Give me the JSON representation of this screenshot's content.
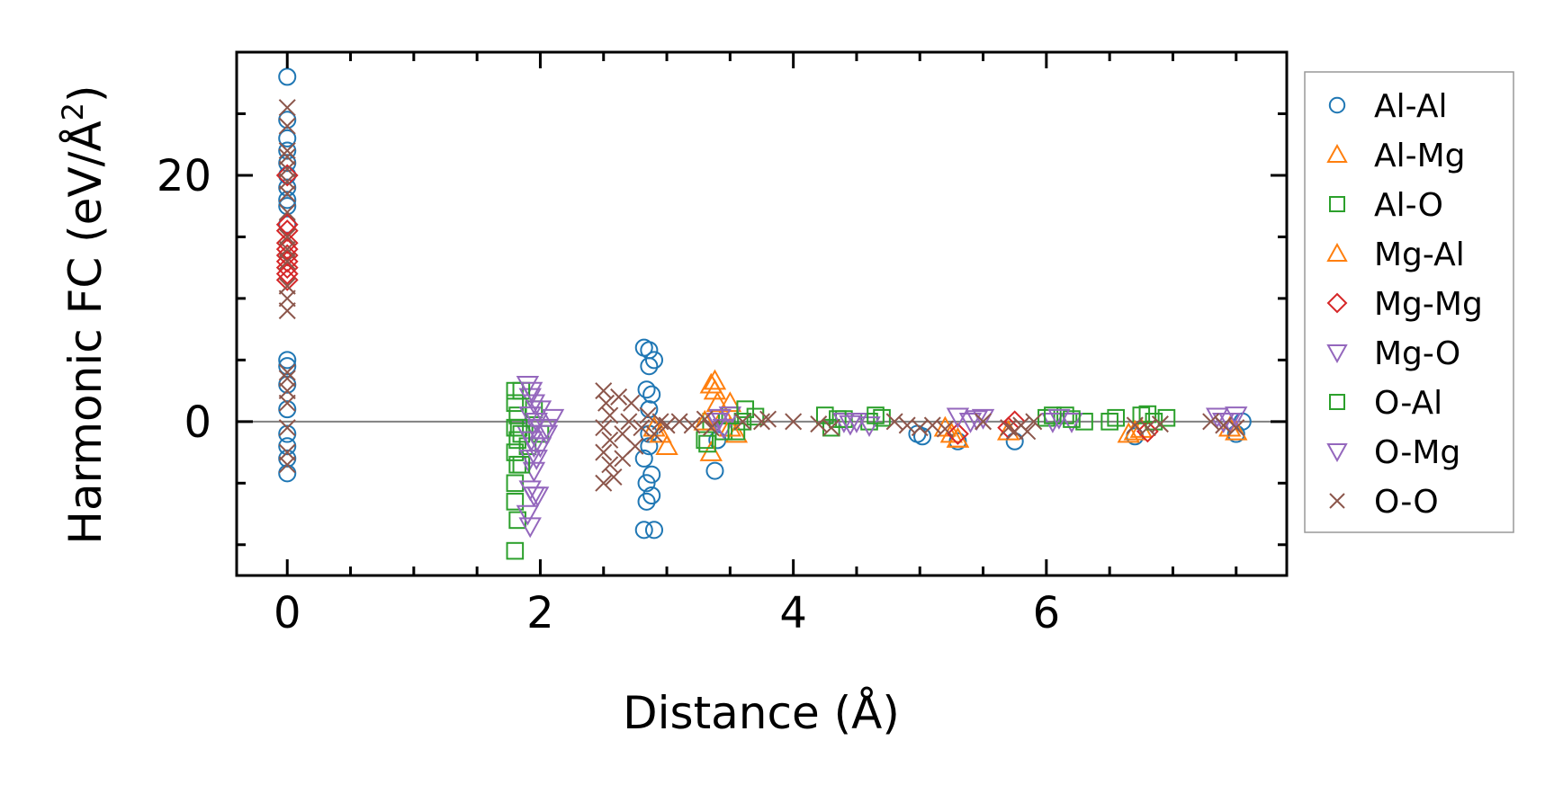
{
  "chart_data": {
    "type": "scatter",
    "xlabel": "Distance (Å)",
    "ylabel_main": "Harmonic FC (eV/Å",
    "ylabel_sup": "2",
    "ylabel_close": ")",
    "xlim": [
      -0.4,
      7.9
    ],
    "ylim": [
      -12.5,
      30
    ],
    "x_ticks": [
      0,
      2,
      4,
      6
    ],
    "x_tick_labels": [
      "0",
      "2",
      "4",
      "6"
    ],
    "y_ticks": [
      0,
      20
    ],
    "y_tick_labels": [
      "0",
      "20"
    ],
    "zero_line": true,
    "grid": false,
    "legend_position": "outside-right",
    "series": [
      {
        "name": "Al-Al",
        "marker": "circle",
        "color": "#1f77b4",
        "points": [
          [
            0,
            28
          ],
          [
            0,
            24.5
          ],
          [
            0,
            23
          ],
          [
            0,
            22
          ],
          [
            0,
            21
          ],
          [
            0,
            20
          ],
          [
            0,
            19
          ],
          [
            0,
            18
          ],
          [
            0,
            17.5
          ],
          [
            0,
            16
          ],
          [
            0,
            5
          ],
          [
            0,
            4.5
          ],
          [
            0,
            3
          ],
          [
            0,
            1
          ],
          [
            0,
            -1
          ],
          [
            0,
            -2
          ],
          [
            0,
            -3
          ],
          [
            0,
            -4.2
          ],
          [
            2.82,
            6
          ],
          [
            2.86,
            5.8
          ],
          [
            2.9,
            5
          ],
          [
            2.86,
            4.5
          ],
          [
            2.84,
            2.6
          ],
          [
            2.88,
            2.2
          ],
          [
            2.86,
            1
          ],
          [
            2.86,
            -1
          ],
          [
            2.86,
            -2
          ],
          [
            2.82,
            -3
          ],
          [
            2.88,
            -4.3
          ],
          [
            2.84,
            -5
          ],
          [
            2.88,
            -6
          ],
          [
            2.84,
            -6.5
          ],
          [
            2.82,
            -8.8
          ],
          [
            2.9,
            -8.8
          ],
          [
            3.38,
            -4
          ],
          [
            3.4,
            -1.5
          ],
          [
            4.98,
            -1
          ],
          [
            5.02,
            -1.2
          ],
          [
            5.3,
            -1.6
          ],
          [
            5.75,
            -1.6
          ],
          [
            6.7,
            -1.2
          ],
          [
            7.5,
            -1
          ],
          [
            7.55,
            0
          ]
        ]
      },
      {
        "name": "Al-Mg",
        "marker": "triangle-up",
        "color": "#ff7f0e",
        "points": [
          [
            2.95,
            -1
          ],
          [
            3.0,
            -2
          ],
          [
            3.35,
            3
          ],
          [
            3.38,
            2.5
          ],
          [
            3.4,
            1.5
          ],
          [
            3.35,
            -2.5
          ],
          [
            3.45,
            0.5
          ],
          [
            3.5,
            1.5
          ],
          [
            3.55,
            -1
          ],
          [
            5.25,
            -1
          ],
          [
            5.3,
            -1.4
          ],
          [
            5.7,
            -0.8
          ],
          [
            6.65,
            -1
          ],
          [
            6.75,
            -0.6
          ],
          [
            7.5,
            -0.8
          ]
        ]
      },
      {
        "name": "Al-O",
        "marker": "square",
        "color": "#2ca02c",
        "points": [
          [
            1.8,
            2.5
          ],
          [
            1.8,
            1.5
          ],
          [
            1.82,
            0.5
          ],
          [
            1.8,
            -0.5
          ],
          [
            1.82,
            -1.5
          ],
          [
            1.8,
            -2.5
          ],
          [
            1.82,
            -3.5
          ],
          [
            1.8,
            -5
          ],
          [
            1.8,
            -6.5
          ],
          [
            1.82,
            -8
          ],
          [
            1.8,
            -10.5
          ],
          [
            1.9,
            -2
          ],
          [
            1.95,
            1
          ],
          [
            2.0,
            -1
          ],
          [
            3.3,
            -1.5
          ],
          [
            3.35,
            0
          ],
          [
            3.45,
            -0.8
          ],
          [
            3.5,
            0.5
          ],
          [
            3.6,
            0
          ],
          [
            3.7,
            0.4
          ],
          [
            4.25,
            0.5
          ],
          [
            4.3,
            -0.5
          ],
          [
            4.4,
            0.2
          ],
          [
            4.6,
            0
          ],
          [
            4.7,
            0.3
          ],
          [
            6.0,
            0.3
          ],
          [
            6.15,
            0.5
          ],
          [
            6.3,
            0
          ],
          [
            6.5,
            0
          ],
          [
            6.75,
            0.5
          ],
          [
            6.85,
            0
          ],
          [
            6.95,
            0.3
          ]
        ]
      },
      {
        "name": "Mg-Al",
        "marker": "triangle-up",
        "color": "#ff7f0e",
        "points": [
          [
            2.9,
            -0.5
          ],
          [
            3.3,
            0
          ],
          [
            3.38,
            3.3
          ],
          [
            3.5,
            -0.5
          ],
          [
            5.2,
            -0.5
          ],
          [
            5.3,
            -1.4
          ],
          [
            6.7,
            -0.8
          ],
          [
            7.45,
            -0.5
          ]
        ]
      },
      {
        "name": "Mg-Mg",
        "marker": "diamond",
        "color": "#d62728",
        "points": [
          [
            0,
            20
          ],
          [
            0,
            16
          ],
          [
            0,
            15.5
          ],
          [
            0,
            14.5
          ],
          [
            0,
            14
          ],
          [
            0,
            13.5
          ],
          [
            0,
            13
          ],
          [
            0,
            12.5
          ],
          [
            0,
            12
          ],
          [
            0,
            11.5
          ],
          [
            5.3,
            -1
          ],
          [
            5.7,
            -0.5
          ],
          [
            5.75,
            0
          ],
          [
            6.8,
            -0.8
          ]
        ]
      },
      {
        "name": "Mg-O",
        "marker": "triangle-down",
        "color": "#9467bd",
        "points": [
          [
            1.9,
            3
          ],
          [
            1.92,
            2
          ],
          [
            1.95,
            1.5
          ],
          [
            1.92,
            0.5
          ],
          [
            1.95,
            -0.5
          ],
          [
            1.9,
            -1
          ],
          [
            1.95,
            -2
          ],
          [
            1.92,
            -3
          ],
          [
            1.95,
            -4
          ],
          [
            1.92,
            -5.5
          ],
          [
            1.95,
            -6
          ],
          [
            1.9,
            -7.5
          ],
          [
            1.92,
            -8.5
          ],
          [
            2.0,
            1
          ],
          [
            2.05,
            -0.5
          ],
          [
            2.0,
            -2
          ],
          [
            2.1,
            0.3
          ],
          [
            2.05,
            -1
          ],
          [
            3.4,
            0
          ],
          [
            3.5,
            0.5
          ],
          [
            3.45,
            -0.5
          ],
          [
            4.4,
            0
          ],
          [
            4.5,
            0
          ],
          [
            4.6,
            -0.3
          ],
          [
            5.3,
            0.4
          ],
          [
            5.4,
            0
          ],
          [
            5.5,
            0.3
          ],
          [
            6.05,
            0
          ],
          [
            6.2,
            0
          ],
          [
            7.35,
            0.4
          ],
          [
            7.45,
            0
          ],
          [
            7.5,
            0.5
          ]
        ]
      },
      {
        "name": "O-Al",
        "marker": "square",
        "color": "#2ca02c",
        "points": [
          [
            1.85,
            2.5
          ],
          [
            1.83,
            -0.5
          ],
          [
            1.85,
            -3.5
          ],
          [
            1.85,
            -1
          ],
          [
            3.32,
            -1.8
          ],
          [
            3.55,
            -0.8
          ],
          [
            3.62,
            1
          ],
          [
            4.35,
            0.2
          ],
          [
            4.65,
            0.5
          ],
          [
            6.05,
            0.5
          ],
          [
            6.2,
            0.2
          ],
          [
            6.55,
            0.3
          ],
          [
            6.8,
            0.6
          ]
        ]
      },
      {
        "name": "O-Mg",
        "marker": "triangle-down",
        "color": "#9467bd",
        "points": [
          [
            1.93,
            2.5
          ],
          [
            1.97,
            0
          ],
          [
            1.93,
            -1.5
          ],
          [
            1.97,
            -3
          ],
          [
            1.98,
            -6
          ],
          [
            3.42,
            0.3
          ],
          [
            4.45,
            -0.2
          ],
          [
            5.45,
            0.2
          ],
          [
            6.1,
            0.3
          ],
          [
            7.4,
            0
          ]
        ]
      },
      {
        "name": "O-O",
        "marker": "x",
        "color": "#8c564b",
        "points": [
          [
            0,
            25.5
          ],
          [
            0,
            24
          ],
          [
            0,
            22
          ],
          [
            0,
            21.5
          ],
          [
            0,
            20.5
          ],
          [
            0,
            19.5
          ],
          [
            0,
            18.5
          ],
          [
            0,
            17
          ],
          [
            0,
            15
          ],
          [
            0,
            14
          ],
          [
            0,
            13
          ],
          [
            0,
            11
          ],
          [
            0,
            10
          ],
          [
            0,
            9
          ],
          [
            0,
            4
          ],
          [
            0,
            3.5
          ],
          [
            0,
            2.5
          ],
          [
            0,
            1.5
          ],
          [
            0,
            -0.5
          ],
          [
            0,
            -2.5
          ],
          [
            0,
            -3.5
          ],
          [
            2.5,
            2.5
          ],
          [
            2.52,
            1.5
          ],
          [
            2.55,
            0.5
          ],
          [
            2.5,
            -0.5
          ],
          [
            2.55,
            -1.5
          ],
          [
            2.5,
            -2.5
          ],
          [
            2.55,
            -3.5
          ],
          [
            2.5,
            -5
          ],
          [
            2.58,
            -4.5
          ],
          [
            2.62,
            2
          ],
          [
            2.65,
            -1
          ],
          [
            2.65,
            -3
          ],
          [
            2.7,
            0
          ],
          [
            2.72,
            1.5
          ],
          [
            2.75,
            -2
          ],
          [
            2.8,
            -0.5
          ],
          [
            2.85,
            0.5
          ],
          [
            2.9,
            -1
          ],
          [
            2.95,
            0
          ],
          [
            3.0,
            -0.3
          ],
          [
            3.1,
            0
          ],
          [
            3.2,
            -0.3
          ],
          [
            3.3,
            0.2
          ],
          [
            3.35,
            -0.5
          ],
          [
            3.6,
            0
          ],
          [
            3.75,
            0
          ],
          [
            3.8,
            0.2
          ],
          [
            4.0,
            0
          ],
          [
            4.2,
            -0.2
          ],
          [
            4.3,
            -0.5
          ],
          [
            4.8,
            0
          ],
          [
            4.9,
            -0.3
          ],
          [
            5.0,
            -0.5
          ],
          [
            5.1,
            -0.3
          ],
          [
            5.2,
            -0.6
          ],
          [
            5.5,
            0
          ],
          [
            5.7,
            -0.5
          ],
          [
            5.75,
            -0.8
          ],
          [
            5.8,
            -0.3
          ],
          [
            5.85,
            -0.8
          ],
          [
            5.9,
            0
          ],
          [
            6.7,
            -0.3
          ],
          [
            6.8,
            -0.5
          ],
          [
            6.9,
            -0.2
          ],
          [
            7.3,
            0
          ],
          [
            7.4,
            -0.3
          ],
          [
            7.5,
            -0.5
          ]
        ]
      }
    ]
  }
}
